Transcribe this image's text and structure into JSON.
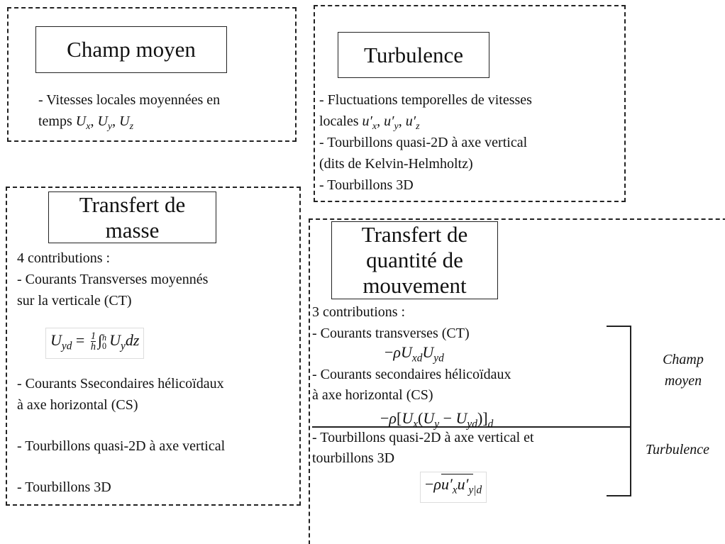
{
  "boxes": [
    {
      "title": [
        "Champ moyen"
      ],
      "lines": [
        [
          "- Vitesses locales moyennées en"
        ],
        [
          "temps ",
          {
            "i": "U",
            "sub": "x"
          },
          ", ",
          {
            "i": "U",
            "sub": "y"
          },
          ", ",
          {
            "i": "U",
            "sub": "z"
          }
        ]
      ]
    },
    {
      "title": [
        "Turbulence"
      ],
      "lines": [
        [
          "- Fluctuations temporelles de vitesses"
        ],
        [
          "locales ",
          {
            "i": "u′",
            "sub": "x"
          },
          ", ",
          {
            "i": "u′",
            "sub": "y"
          },
          ", ",
          {
            "i": "u′",
            "sub": "z"
          }
        ],
        [
          "- Tourbillons quasi-2D à axe vertical"
        ],
        [
          "(dits de Kelvin-Helmholtz)"
        ],
        [
          "- Tourbillons 3D"
        ]
      ]
    },
    {
      "title": [
        "Transfert de",
        "masse"
      ],
      "lines": [
        [
          "4 contributions :"
        ],
        [
          "- Courants Transverses moyennés"
        ],
        [
          "sur la verticale (CT)"
        ],
        [
          {
            "i": "U",
            "sub": "yd"
          },
          " = ",
          {
            "num": "1",
            "den": "h"
          },
          {
            "t": "∫",
            "sub": "0",
            "sup": "h"
          },
          {
            "i": "U",
            "sub": "y"
          },
          {
            "i": "dz"
          }
        ],
        [
          "- Courants Ssecondaires hélicoïdaux"
        ],
        [
          "à axe horizontal (CS)"
        ],
        [
          "- Tourbillons quasi-2D à axe vertical"
        ],
        [
          "- Tourbillons 3D"
        ]
      ]
    },
    {
      "title": [
        "Transfert de",
        "quantité de",
        "mouvement"
      ],
      "lines": [
        [
          "3 contributions :"
        ],
        [
          "- Courants transverses (CT)"
        ],
        [
          "−",
          {
            "i": "ρU",
            "sub": "xd"
          },
          {
            "i": "U",
            "sub": "yd"
          }
        ],
        [
          "- Courants secondaires hélicoïdaux"
        ],
        [
          "à axe horizontal (CS)"
        ],
        [
          "−",
          {
            "i": "ρ"
          },
          "[",
          {
            "i": "U",
            "sub": "x"
          },
          "(",
          {
            "i": "U",
            "sub": "y"
          },
          " − ",
          {
            "i": "U",
            "sub": "yd"
          },
          ")]",
          {
            "sub": "d"
          }
        ],
        [
          "- Tourbillons quasi-2D à axe vertical et"
        ],
        [
          "tourbillons 3D"
        ],
        [
          "−",
          {
            "i": "ρ"
          },
          {
            "over": [
              {
                "i": "u′",
                "sub": "x"
              },
              {
                "i": "u′",
                "sub": "y"
              }
            ]
          },
          {
            "sub": "|d"
          }
        ]
      ]
    }
  ],
  "side_labels": [
    [
      "Champ",
      "moyen"
    ],
    [
      "Turbulence"
    ]
  ]
}
